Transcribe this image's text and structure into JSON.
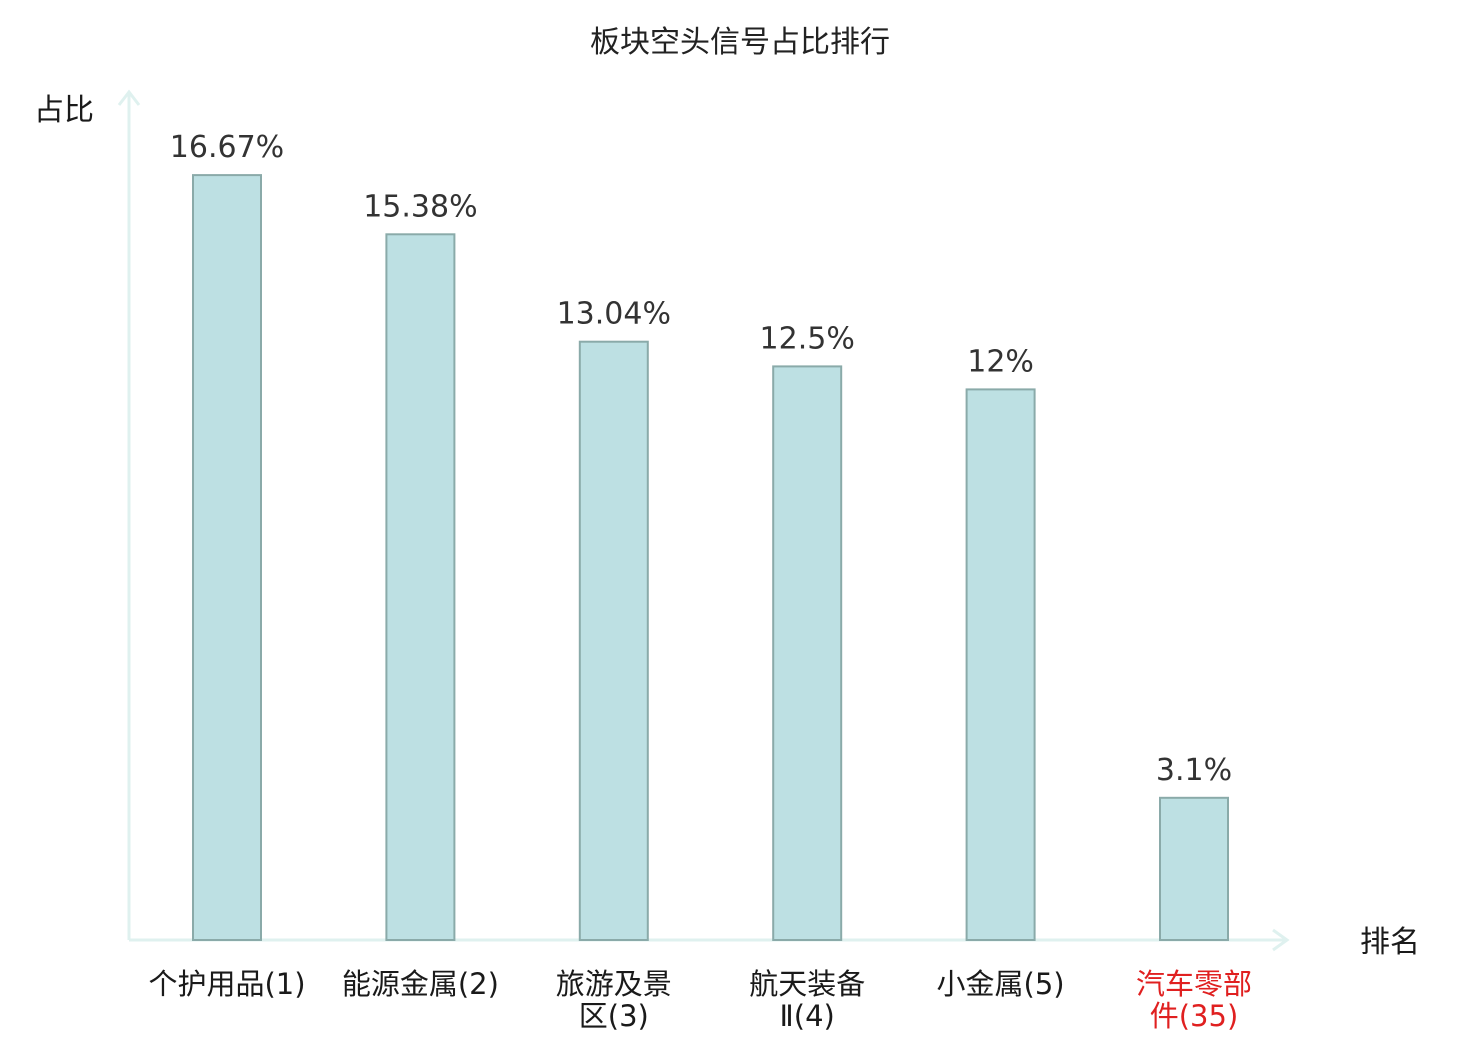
{
  "chart_data": {
    "type": "bar",
    "title": "板块空头信号占比排行",
    "ylabel": "占比",
    "xlabel": "排名",
    "ylim": [
      0,
      17.5
    ],
    "grid": false,
    "legend": "none",
    "categories": [
      {
        "lines": [
          "个护用品",
          "(1)"
        ],
        "name": "个护用品",
        "rank": "(1)",
        "highlight": false
      },
      {
        "lines": [
          "能源金属",
          "(2)"
        ],
        "name": "能源金属",
        "rank": "(2)",
        "highlight": false
      },
      {
        "lines": [
          "旅游及景",
          "区(3)"
        ],
        "name": "旅游及景区",
        "rank": "(3)",
        "highlight": false
      },
      {
        "lines": [
          "航天装备",
          "Ⅱ(4)"
        ],
        "name": "航天装备Ⅱ",
        "rank": "(4)",
        "highlight": false
      },
      {
        "lines": [
          "小金属",
          "(5)"
        ],
        "name": "小金属",
        "rank": "(5)",
        "highlight": false
      },
      {
        "lines": [
          "汽车零部",
          "件(35)"
        ],
        "name": "汽车零部件",
        "rank": "(35)",
        "highlight": true
      }
    ],
    "values": [
      16.67,
      15.38,
      13.04,
      12.5,
      12,
      3.1
    ],
    "data_labels": [
      "16.67%",
      "15.38%",
      "13.04%",
      "12.5%",
      "12%",
      "3.1%"
    ],
    "colors": {
      "bar_fill": "#bde0e3",
      "bar_stroke": "#8aaaa9",
      "axis": "#dff1ef",
      "label_text": "#1a1a1a",
      "highlight_text": "#e02020"
    }
  }
}
